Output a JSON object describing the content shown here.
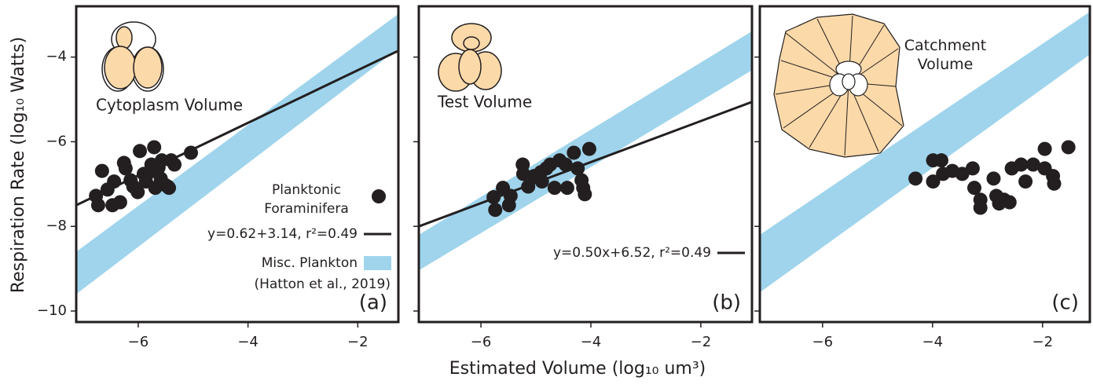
{
  "chart_data": [
    {
      "type": "scatter",
      "ylabel": "Respiration Rate (log₁₀ Watts)",
      "panel_label": "(a)",
      "annotation": "Cytoplasm Volume",
      "xlim": [
        -7.13,
        -1.26
      ],
      "ylim": [
        -10.26,
        -2.8
      ],
      "xticks": [
        {
          "value": -6,
          "label": "−6"
        },
        {
          "value": -4,
          "label": "−4"
        },
        {
          "value": -2,
          "label": "−2"
        }
      ],
      "yticks": [
        {
          "value": -10,
          "label": "−10"
        },
        {
          "value": -8,
          "label": "−8"
        },
        {
          "value": -6,
          "label": "−6"
        },
        {
          "value": -4,
          "label": "−4"
        }
      ],
      "ytick_labels": true,
      "legend": "lower right",
      "legend_source": "(Hatton et al., 2019)",
      "series": [
        {
          "type": "band",
          "name": "Misc. Plankton",
          "color": "#9fd4ec",
          "x": [
            -7.13,
            -1.26
          ],
          "lower": [
            -9.6,
            -3.8
          ],
          "upper": [
            -8.6,
            -2.98
          ]
        },
        {
          "type": "line",
          "name": "y=0.62+3.14, r²=0.49",
          "color": "#231f20",
          "x": [
            -7.13,
            -1.26
          ],
          "values": [
            -7.5,
            -3.85
          ]
        },
        {
          "type": "scatter",
          "name": "Planktonic Foraminifera",
          "color": "#231f20",
          "x": [
            -6.73,
            -6.77,
            -6.66,
            -6.56,
            -6.44,
            -6.47,
            -6.33,
            -6.26,
            -6.23,
            -6.14,
            -6.09,
            -6.01,
            -5.97,
            -5.9,
            -5.86,
            -5.8,
            -5.76,
            -5.71,
            -5.69,
            -5.63,
            -5.59,
            -5.51,
            -5.44,
            -5.57,
            -5.4,
            -5.34,
            -5.46,
            -5.04
          ],
          "values": [
            -7.5,
            -7.28,
            -6.69,
            -7.13,
            -6.94,
            -7.5,
            -7.43,
            -6.5,
            -6.63,
            -6.91,
            -7.06,
            -7.19,
            -6.22,
            -6.76,
            -6.94,
            -6.72,
            -6.54,
            -6.13,
            -7.09,
            -6.61,
            -6.87,
            -7.02,
            -7.09,
            -6.44,
            -6.44,
            -6.54,
            -7.06,
            -6.26
          ]
        }
      ]
    },
    {
      "type": "scatter",
      "xlabel": "Estimated Volume (log₁₀ um³)",
      "panel_label": "(b)",
      "annotation": "Test Volume",
      "xlim": [
        -7.13,
        -1.07
      ],
      "ylim": [
        -10.26,
        -2.8
      ],
      "xticks": [
        {
          "value": -6,
          "label": "−6"
        },
        {
          "value": -4,
          "label": "−4"
        },
        {
          "value": -2,
          "label": "−2"
        }
      ],
      "yticks": [
        -10,
        -8,
        -6,
        -4
      ],
      "ytick_labels": false,
      "legend": "lower right",
      "series": [
        {
          "type": "band",
          "color": "#9fd4ec",
          "x": [
            -7.13,
            -1.07
          ],
          "lower": [
            -9.04,
            -4.31
          ],
          "upper": [
            -8.2,
            -3.39
          ]
        },
        {
          "type": "line",
          "name": "y=0.50x+6.52, r²=0.49",
          "color": "#231f20",
          "x": [
            -7.13,
            -1.07
          ],
          "values": [
            -8.0,
            -5.06
          ]
        },
        {
          "type": "scatter",
          "color": "#231f20",
          "x": [
            -5.74,
            -5.77,
            -5.6,
            -5.49,
            -5.46,
            -5.24,
            -5.23,
            -5.14,
            -5.03,
            -4.91,
            -4.89,
            -4.81,
            -4.74,
            -4.66,
            -4.57,
            -4.46,
            -4.43,
            -4.31,
            -4.24,
            -4.17,
            -4.14,
            -4.11,
            -4.03
          ],
          "values": [
            -7.61,
            -7.31,
            -7.09,
            -7.5,
            -7.28,
            -6.54,
            -6.76,
            -7.06,
            -6.81,
            -6.72,
            -6.94,
            -6.63,
            -6.54,
            -7.09,
            -6.44,
            -6.54,
            -7.09,
            -6.26,
            -6.63,
            -6.91,
            -7.09,
            -7.24,
            -6.17
          ]
        }
      ]
    },
    {
      "type": "scatter",
      "panel_label": "(c)",
      "annotation": "Catchment Volume",
      "xlim": [
        -7.14,
        -1.14
      ],
      "ylim": [
        -10.26,
        -2.8
      ],
      "xticks": [
        {
          "value": -6,
          "label": "−6"
        },
        {
          "value": -4,
          "label": "−4"
        },
        {
          "value": -2,
          "label": "−2"
        }
      ],
      "yticks": [
        -10,
        -8,
        -6,
        -4
      ],
      "ytick_labels": false,
      "series": [
        {
          "type": "band",
          "color": "#9fd4ec",
          "x": [
            -7.14,
            -1.14
          ],
          "lower": [
            -9.56,
            -3.94
          ],
          "upper": [
            -8.2,
            -2.93
          ]
        },
        {
          "type": "scatter",
          "color": "#231f20",
          "x": [
            -4.31,
            -3.99,
            -3.84,
            -3.99,
            -3.81,
            -3.64,
            -3.46,
            -3.27,
            -3.24,
            -3.13,
            -3.13,
            -2.89,
            -2.84,
            -2.79,
            -2.7,
            -2.6,
            -2.56,
            -2.39,
            -2.31,
            -2.17,
            -1.96,
            -1.96,
            -1.81,
            -1.79,
            -1.53
          ],
          "values": [
            -6.87,
            -6.44,
            -6.44,
            -6.94,
            -6.76,
            -6.69,
            -6.76,
            -6.63,
            -7.09,
            -7.37,
            -7.56,
            -6.87,
            -7.28,
            -7.46,
            -7.37,
            -7.43,
            -6.63,
            -6.54,
            -6.94,
            -6.54,
            -6.17,
            -6.63,
            -6.81,
            -6.99,
            -6.13
          ]
        }
      ]
    }
  ]
}
